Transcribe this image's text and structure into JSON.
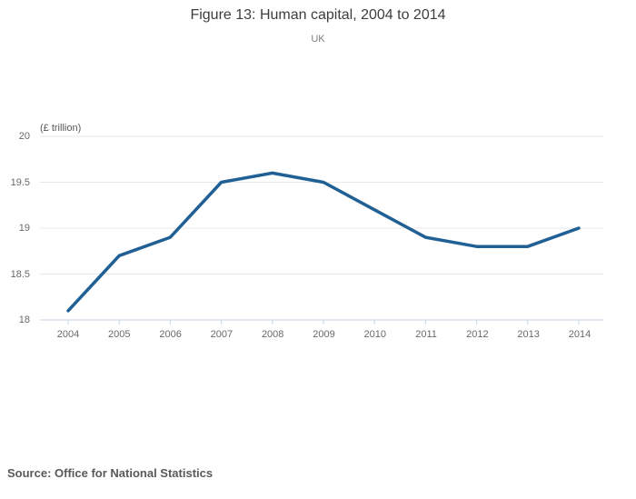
{
  "header": {
    "title": "Figure 13: Human capital, 2004 to 2014",
    "subtitle": "UK"
  },
  "chart_data": {
    "type": "line",
    "title": "Figure 13: Human capital, 2004 to 2014",
    "subtitle": "UK",
    "unit_label": "(£ trillion)",
    "categories": [
      "2004",
      "2005",
      "2006",
      "2007",
      "2008",
      "2009",
      "2010",
      "2011",
      "2012",
      "2013",
      "2014"
    ],
    "values": [
      18.1,
      18.7,
      18.9,
      19.5,
      19.6,
      19.5,
      19.2,
      18.9,
      18.8,
      18.8,
      19.0
    ],
    "series_name": "Human capital",
    "xlabel": "",
    "ylabel": "(£ trillion)",
    "ylim": [
      18,
      20
    ],
    "y_tick_labels": [
      "20",
      "19.5",
      "19",
      "18.5",
      "18"
    ],
    "y_tick_values": [
      20,
      19.5,
      19,
      18.5,
      18
    ],
    "grid": true,
    "legend": false
  },
  "colors": {
    "line": "#206095",
    "grid": "#e8e8e8",
    "axis": "#c8d4e3",
    "title_text": "#3d3d3d",
    "tick_text": "#696969"
  },
  "footer": {
    "source": "Source: Office for National Statistics"
  }
}
